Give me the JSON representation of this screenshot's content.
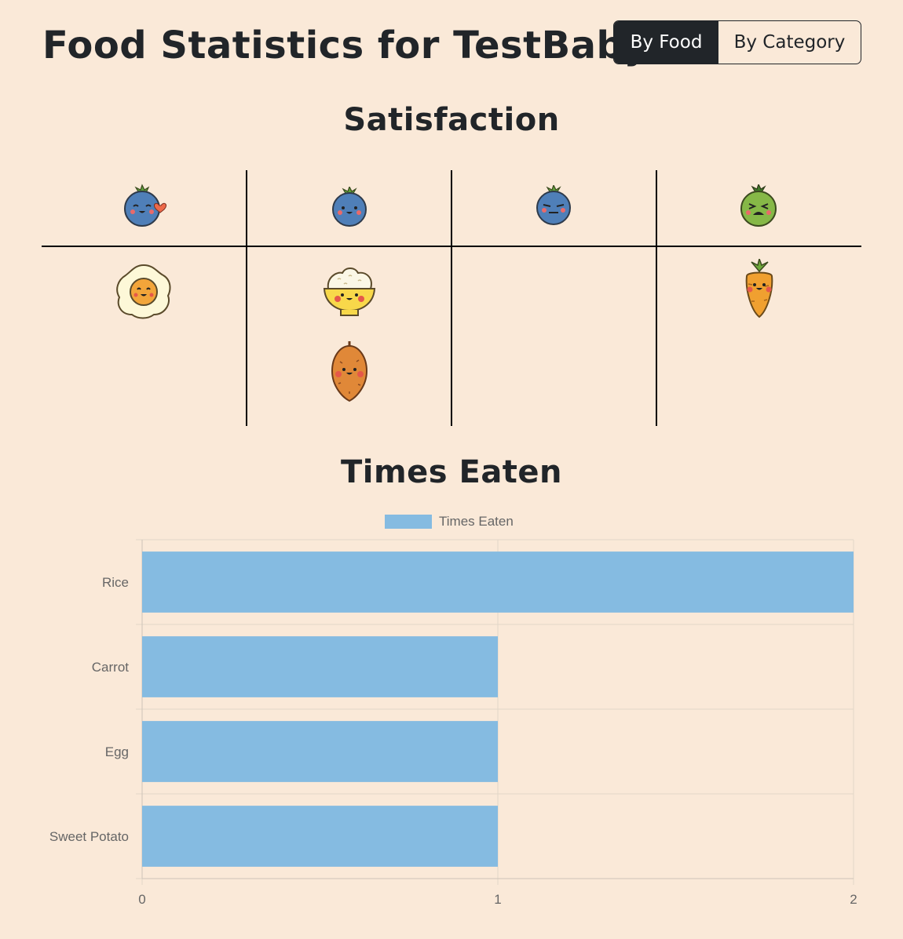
{
  "header": {
    "title_prefix": "Food Statistics for",
    "baby_name": "TestBaby"
  },
  "view_toggle": {
    "by_food_label": "By Food",
    "by_category_label": "By Category",
    "selected": "By Food"
  },
  "satisfaction": {
    "title": "Satisfaction",
    "columns": [
      {
        "level_icon": "love-face-icon",
        "foods": [
          "egg-icon"
        ]
      },
      {
        "level_icon": "happy-face-icon",
        "foods": [
          "rice-bowl-icon",
          "sweet-potato-icon"
        ]
      },
      {
        "level_icon": "neutral-face-icon",
        "foods": []
      },
      {
        "level_icon": "disgusted-face-icon",
        "foods": [
          "carrot-icon"
        ]
      }
    ]
  },
  "times_eaten": {
    "title": "Times Eaten"
  },
  "chart_data": {
    "type": "bar",
    "orientation": "horizontal",
    "categories": [
      "Rice",
      "Carrot",
      "Egg",
      "Sweet Potato"
    ],
    "series": [
      {
        "name": "Times Eaten",
        "values": [
          2,
          1,
          1,
          1
        ],
        "color": "#85bbe1"
      }
    ],
    "xlim": [
      0,
      2
    ],
    "xticks": [
      "0",
      "1",
      "2"
    ],
    "grid": true,
    "legend_position": "top-center"
  }
}
